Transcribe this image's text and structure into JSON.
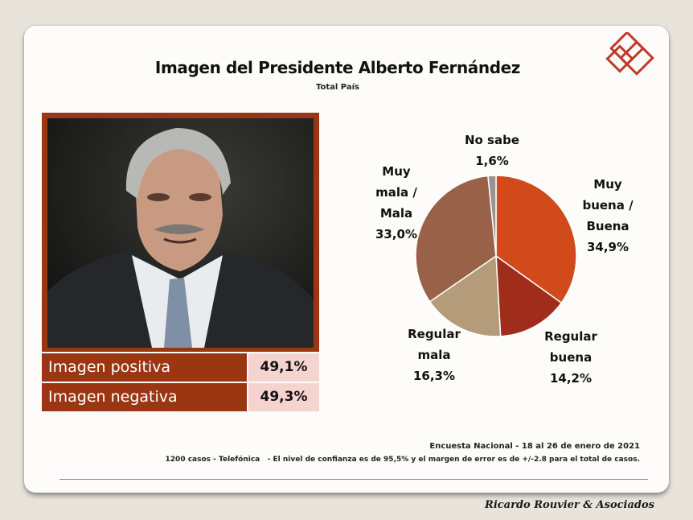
{
  "title": "Imagen del Presidente Alberto Fernández",
  "subtitle": "Total País",
  "table": {
    "rows": [
      {
        "label": "Imagen positiva",
        "value": "49,1%"
      },
      {
        "label": "Imagen negativa",
        "value": "49,3%"
      }
    ]
  },
  "chart_data": {
    "type": "pie",
    "slices": [
      {
        "label_lines": [
          "Muy",
          "buena /",
          "Buena"
        ],
        "value": 34.9,
        "display": "34,9%",
        "color": "#d04a1c"
      },
      {
        "label_lines": [
          "Regular",
          "buena"
        ],
        "value": 14.2,
        "display": "14,2%",
        "color": "#a02d1c"
      },
      {
        "label_lines": [
          "Regular",
          "mala"
        ],
        "value": 16.3,
        "display": "16,3%",
        "color": "#b49b79"
      },
      {
        "label_lines": [
          "Muy",
          "mala /",
          "Mala"
        ],
        "value": 33.0,
        "display": "33,0%",
        "color": "#9a6149"
      },
      {
        "label_lines": [
          "No sabe"
        ],
        "value": 1.6,
        "display": "1,6%",
        "color": "#9a9490"
      }
    ]
  },
  "footer": {
    "line1": "Encuesta Nacional - 18 al 26 de enero de 2021",
    "line2": "1200 casos - Telefónica   - El nivel de confianza es de 95,5% y el margen de error es de +/-2.8 para el total de casos."
  },
  "brand": "Ricardo Rouvier & Asociados",
  "colors": {
    "accent": "#9a3612",
    "value_bg": "#f5d3cf"
  }
}
